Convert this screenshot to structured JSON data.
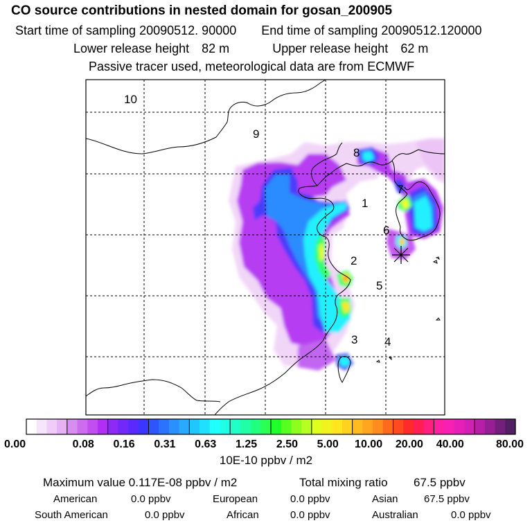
{
  "header": {
    "title": "CO  source contributions in nested domain for gosan_200905",
    "start_label": "Start time of sampling",
    "start_value": "20090512. 90000",
    "end_label": "End time of sampling",
    "end_value": "20090512.120000",
    "lower_label": "Lower release height",
    "lower_value": "82 m",
    "upper_label": "Upper release height",
    "upper_value": "62 m",
    "tracer_note": "Passive tracer used, meteorological data are from ECMWF"
  },
  "chart_data": {
    "type": "heatmap",
    "title": "CO  source contributions in nested domain for gosan_200905",
    "units": "10E-10 ppbv / m2",
    "region_labels": [
      "1",
      "2",
      "3",
      "4",
      "5",
      "6",
      "7",
      "8",
      "9",
      "10"
    ],
    "colorbar": {
      "tick_labels": [
        "0.00",
        "0.08",
        "0.16",
        "0.31",
        "0.63",
        "1.25",
        "2.50",
        "5.00",
        "10.00",
        "20.00",
        "40.00",
        "80.00"
      ],
      "colors": [
        "#ffffff",
        "#f7e6fb",
        "#efcdf8",
        "#e6b2f5",
        "#d88df0",
        "#cd6cee",
        "#c24ef0",
        "#b12ef4",
        "#8e2af7",
        "#7328fa",
        "#5a2afc",
        "#3e34ff",
        "#2d55ff",
        "#2a72ff",
        "#2a90ff",
        "#28aaff",
        "#22c6ff",
        "#20e0ff",
        "#20ffff",
        "#20ffe6",
        "#20ffc8",
        "#20ffa8",
        "#20ff80",
        "#2aff55",
        "#1fff2a",
        "#55ff1f",
        "#8cff1f",
        "#b8ff1f",
        "#dfff1f",
        "#f2f21f",
        "#ffe61f",
        "#ffd21f",
        "#ffbb1f",
        "#ffa51f",
        "#ff8c1f",
        "#ff6a1f",
        "#ff4a1f",
        "#ff2a2a",
        "#ff1f55",
        "#ff1f80",
        "#ff1fa5",
        "#f71fb4",
        "#e61fb8",
        "#d21fb4",
        "#b81fa8",
        "#961f96",
        "#741f7c",
        "#521f62"
      ]
    }
  },
  "stats": {
    "max_label": "Maximum value",
    "max_value": "0.117E-08 ppbv / m2",
    "total_label": "Total mixing ratio",
    "total_value": "67.5 ppbv"
  },
  "contributions": [
    {
      "name": "American",
      "value": "0.0 ppbv"
    },
    {
      "name": "European",
      "value": "0.0 ppbv"
    },
    {
      "name": "Asian",
      "value": "67.5 ppbv"
    },
    {
      "name": "South American",
      "value": "0.0 ppbv"
    },
    {
      "name": "African",
      "value": "0.0 ppbv"
    },
    {
      "name": "Australian",
      "value": "0.0 ppbv"
    }
  ],
  "colors": {
    "frame": "#000000",
    "grid": "#000000",
    "coast": "#000000"
  }
}
